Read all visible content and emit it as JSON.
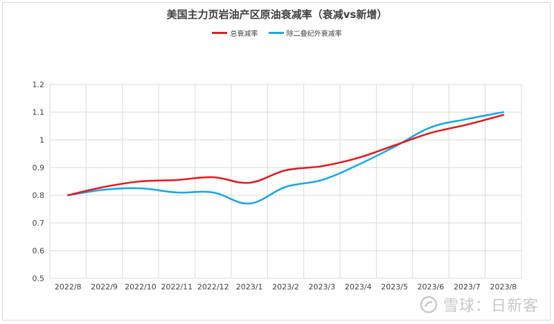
{
  "chart_data": {
    "type": "line",
    "title": "美国主力页岩油产区原油衰减率（衰减vs新增）",
    "categories": [
      "2022/8",
      "2022/9",
      "2022/10",
      "2022/11",
      "2022/12",
      "2023/1",
      "2023/2",
      "2023/3",
      "2023/4",
      "2023/5",
      "2023/6",
      "2023/7",
      "2023/8"
    ],
    "series": [
      {
        "name": "总衰减率",
        "color": "#e31a1c",
        "values": [
          0.8,
          0.83,
          0.85,
          0.855,
          0.865,
          0.845,
          0.89,
          0.905,
          0.935,
          0.98,
          1.025,
          1.055,
          1.09
        ]
      },
      {
        "name": "除二叠纪外衰减率",
        "color": "#1aa7e6",
        "values": [
          0.8,
          0.82,
          0.825,
          0.81,
          0.81,
          0.77,
          0.83,
          0.855,
          0.91,
          0.975,
          1.045,
          1.075,
          1.1
        ]
      }
    ],
    "ylim": [
      0.5,
      1.2
    ],
    "yticks": [
      "0.5",
      "0.6",
      "0.7",
      "0.8",
      "0.9",
      "1",
      "1.1",
      "1.2"
    ],
    "grid": true,
    "legend_position": "top"
  },
  "watermark": {
    "text": "雪球：日新客",
    "icon": "snowball-logo-icon"
  }
}
